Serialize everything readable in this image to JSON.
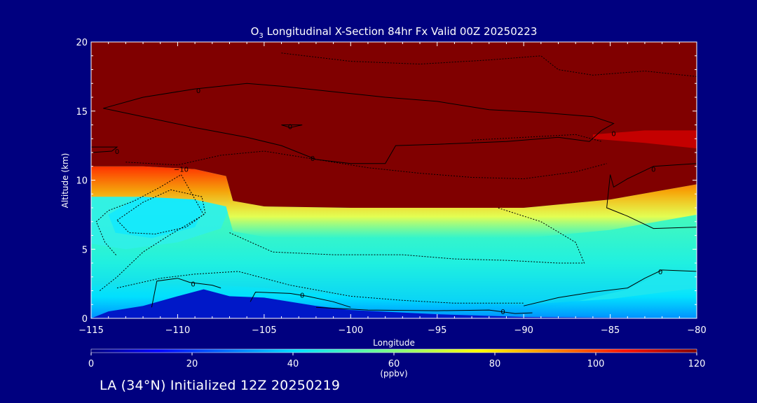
{
  "chart_data": {
    "type": "heatmap",
    "title": "O3 Longitudinal X-Section 84hr  Fx Valid 00Z 20250223",
    "title_species": "O",
    "title_subscript": "3",
    "title_rest": " Longitudinal X-Section 84hr  Fx Valid 00Z 20250223",
    "xlabel": "Longitude",
    "ylabel": "Altitude (km)",
    "xlim": [
      -115,
      -80
    ],
    "ylim": [
      0,
      20
    ],
    "x_ticks": [
      -115,
      -110,
      -105,
      -100,
      -95,
      -90,
      -85,
      -80
    ],
    "x_tick_labels": [
      "−115",
      "−110",
      "−105",
      "−100",
      "−95",
      "−90",
      "−85",
      "−80"
    ],
    "y_ticks": [
      0,
      5,
      10,
      15,
      20
    ],
    "y_tick_labels": [
      "0",
      "5",
      "10",
      "15",
      "20"
    ],
    "colorbar": {
      "range": [
        0,
        120
      ],
      "ticks": [
        0,
        20,
        40,
        60,
        80,
        100,
        120
      ],
      "tick_labels": [
        "0",
        "20",
        "40",
        "60",
        "80",
        "100",
        "120"
      ],
      "unit_label": "(ppbv)"
    },
    "tropopause_km": [
      {
        "lon": -115,
        "alt": 11.0
      },
      {
        "lon": -112,
        "alt": 11.0
      },
      {
        "lon": -109,
        "alt": 10.8
      },
      {
        "lon": -107.2,
        "alt": 10.3
      },
      {
        "lon": -106.8,
        "alt": 8.5
      },
      {
        "lon": -105,
        "alt": 8.1
      },
      {
        "lon": -100,
        "alt": 8.0
      },
      {
        "lon": -95,
        "alt": 8.0
      },
      {
        "lon": -90,
        "alt": 8.0
      },
      {
        "lon": -85,
        "alt": 8.6
      },
      {
        "lon": -80,
        "alt": 9.7
      }
    ],
    "surface_terrain_km": [
      {
        "lon": -115,
        "alt": 0.0
      },
      {
        "lon": -114,
        "alt": 0.5
      },
      {
        "lon": -112,
        "alt": 0.9
      },
      {
        "lon": -110,
        "alt": 1.6
      },
      {
        "lon": -108.5,
        "alt": 2.1
      },
      {
        "lon": -107,
        "alt": 1.6
      },
      {
        "lon": -105,
        "alt": 1.5
      },
      {
        "lon": -102,
        "alt": 0.9
      },
      {
        "lon": -100,
        "alt": 0.6
      },
      {
        "lon": -95,
        "alt": 0.3
      },
      {
        "lon": -90,
        "alt": 0.1
      },
      {
        "lon": -80,
        "alt": 0.0
      }
    ],
    "contour_labels": [
      {
        "text": "0",
        "lon": -113.5,
        "alt": 12.1
      },
      {
        "text": "0",
        "lon": -108.8,
        "alt": 16.5
      },
      {
        "text": "0",
        "lon": -103.5,
        "alt": 13.9
      },
      {
        "text": "0",
        "lon": -102.2,
        "alt": 11.6
      },
      {
        "text": "−10",
        "lon": -109.8,
        "alt": 10.8
      },
      {
        "text": "0",
        "lon": -109.1,
        "alt": 2.5
      },
      {
        "text": "0",
        "lon": -102.8,
        "alt": 1.7
      },
      {
        "text": "0",
        "lon": -91.2,
        "alt": 0.5
      },
      {
        "text": "0",
        "lon": -84.8,
        "alt": 13.4
      },
      {
        "text": "0",
        "lon": -82.5,
        "alt": 10.8
      },
      {
        "text": "0",
        "lon": -82.1,
        "alt": 3.4
      }
    ]
  },
  "footer": "LA (34°N) Initialized 12Z 20250219"
}
